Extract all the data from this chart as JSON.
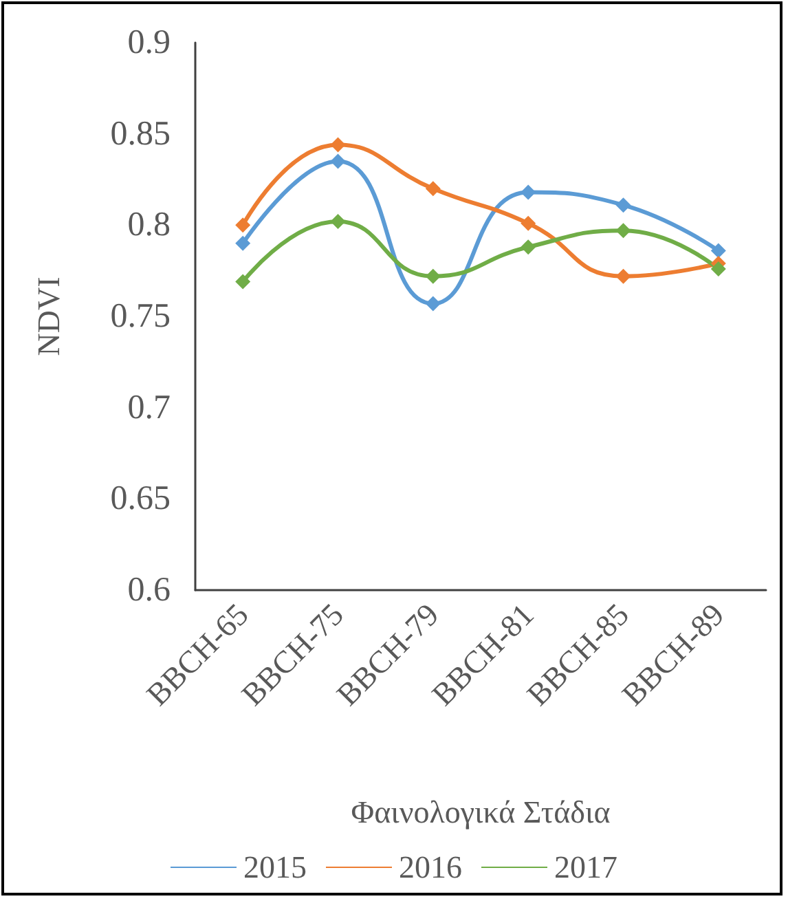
{
  "chart_data": {
    "type": "line",
    "xlabel": "Φαινολογικά Στάδια",
    "ylabel": "NDVI",
    "categories": [
      "BBCH-65",
      "BBCH-75",
      "BBCH-79",
      "BBCH-81",
      "BBCH-85",
      "BBCH-89"
    ],
    "series": [
      {
        "name": "2015",
        "color": "#5b9bd5",
        "values": [
          0.79,
          0.835,
          0.757,
          0.818,
          0.811,
          0.786
        ]
      },
      {
        "name": "2016",
        "color": "#ed7d31",
        "values": [
          0.8,
          0.844,
          0.82,
          0.801,
          0.772,
          0.779
        ]
      },
      {
        "name": "2017",
        "color": "#70ad47",
        "values": [
          0.769,
          0.802,
          0.772,
          0.788,
          0.797,
          0.776
        ]
      }
    ],
    "ylim": [
      0.6,
      0.9
    ],
    "yticks": [
      0.6,
      0.65,
      0.7,
      0.75,
      0.8,
      0.85,
      0.9
    ],
    "grid": false,
    "legend": "bottom",
    "marker": "diamond",
    "line_style": "solid"
  }
}
